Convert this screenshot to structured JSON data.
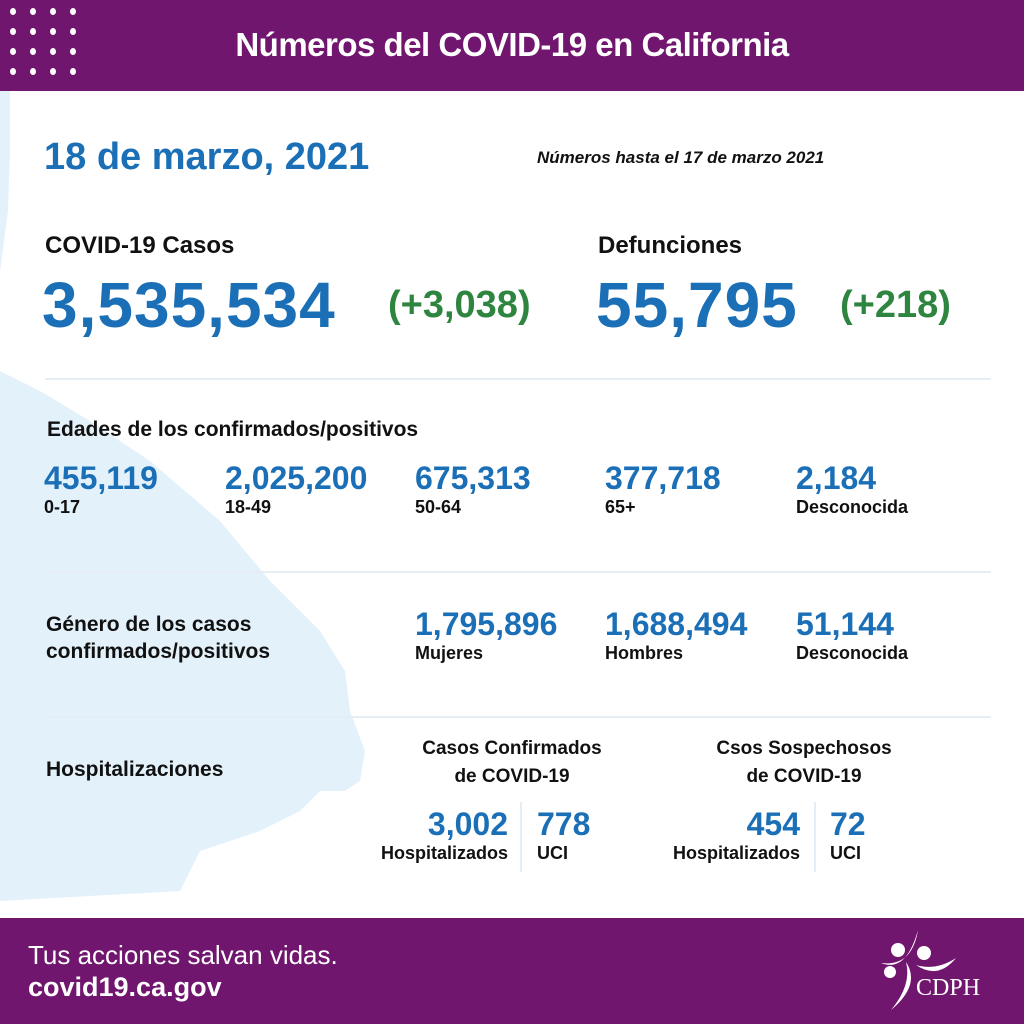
{
  "header": {
    "title": "Números del COVID-19 en California"
  },
  "date": "18 de marzo, 2021",
  "as_of": "Números hasta el 17 de marzo 2021",
  "cases": {
    "label": "COVID-19 Casos",
    "value": "3,535,534",
    "delta": "(+3,038)"
  },
  "deaths": {
    "label": "Defunciones",
    "value": "55,795",
    "delta": "(+218)"
  },
  "ages": {
    "title": "Edades de los confirmados/positivos",
    "items": [
      {
        "value": "455,119",
        "label": "0-17"
      },
      {
        "value": "2,025,200",
        "label": "18-49"
      },
      {
        "value": "675,313",
        "label": "50-64"
      },
      {
        "value": "377,718",
        "label": "65+"
      },
      {
        "value": "2,184",
        "label": "Desconocida"
      }
    ]
  },
  "gender": {
    "title_line1": "Género de los casos",
    "title_line2": "confirmados/positivos",
    "items": [
      {
        "value": "1,795,896",
        "label": "Mujeres"
      },
      {
        "value": "1,688,494",
        "label": "Hombres"
      },
      {
        "value": "51,144",
        "label": "Desconocida"
      }
    ]
  },
  "hosp": {
    "title": "Hospitalizaciones",
    "confirmed": {
      "title_line1": "Casos Confirmados",
      "title_line2": "de COVID-19",
      "hosp_value": "3,002",
      "hosp_label": "Hospitalizados",
      "icu_value": "778",
      "icu_label": "UCI"
    },
    "suspected": {
      "title_line1": "Csos Sospechosos",
      "title_line2": "de COVID-19",
      "hosp_value": "454",
      "hosp_label": "Hospitalizados",
      "icu_value": "72",
      "icu_label": "UCI"
    }
  },
  "footer": {
    "tagline": "Tus acciones salvan vidas.",
    "url": "covid19.ca.gov",
    "logo_text": "CDPH"
  },
  "colors": {
    "purple": "#71166e",
    "blue": "#1a6fb6",
    "green": "#2e8540",
    "map": "#e3f1fb"
  }
}
